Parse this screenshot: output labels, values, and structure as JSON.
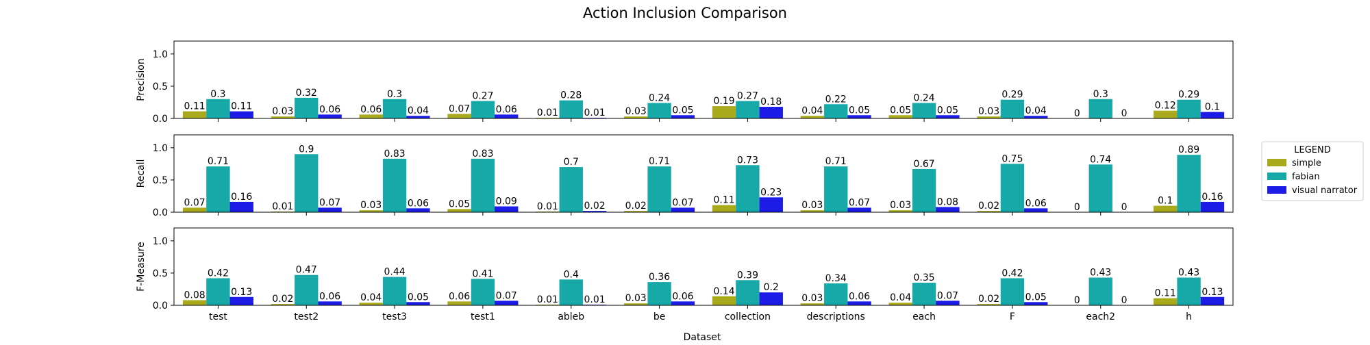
{
  "chart_data": {
    "type": "bar",
    "title": "Action Inclusion Comparison",
    "xlabel": "Dataset",
    "categories": [
      "test",
      "test2",
      "test3",
      "test1",
      "ableb",
      "be",
      "collection",
      "descriptions",
      "each",
      "F",
      "each2",
      "h"
    ],
    "ylim": [
      0,
      1.2
    ],
    "yticks": [
      0.0,
      0.5,
      1.0
    ],
    "grid": false,
    "legend": {
      "title": "LEGEND",
      "placement": "right",
      "entries": [
        "simple",
        "fabian",
        "visual narrator"
      ]
    },
    "series_colors": {
      "simple": "#a9a91c",
      "fabian": "#17a8a8",
      "visual narrator": "#1c1ce6"
    },
    "panels": [
      {
        "ylabel": "Precision",
        "series": [
          {
            "name": "simple",
            "values": [
              0.11,
              0.03,
              0.06,
              0.07,
              0.01,
              0.03,
              0.19,
              0.04,
              0.05,
              0.03,
              0,
              0.12
            ]
          },
          {
            "name": "fabian",
            "values": [
              0.3,
              0.32,
              0.3,
              0.27,
              0.28,
              0.24,
              0.27,
              0.22,
              0.24,
              0.29,
              0.3,
              0.29
            ]
          },
          {
            "name": "visual narrator",
            "values": [
              0.11,
              0.06,
              0.04,
              0.06,
              0.01,
              0.05,
              0.18,
              0.05,
              0.05,
              0.04,
              0,
              0.1
            ]
          }
        ]
      },
      {
        "ylabel": "Recall",
        "series": [
          {
            "name": "simple",
            "values": [
              0.07,
              0.01,
              0.03,
              0.05,
              0.01,
              0.02,
              0.11,
              0.03,
              0.03,
              0.02,
              0,
              0.1
            ]
          },
          {
            "name": "fabian",
            "values": [
              0.71,
              0.9,
              0.83,
              0.83,
              0.7,
              0.71,
              0.73,
              0.71,
              0.67,
              0.75,
              0.74,
              0.89
            ]
          },
          {
            "name": "visual narrator",
            "values": [
              0.16,
              0.07,
              0.06,
              0.09,
              0.02,
              0.07,
              0.23,
              0.07,
              0.08,
              0.06,
              0,
              0.16
            ]
          }
        ]
      },
      {
        "ylabel": "F-Measure",
        "series": [
          {
            "name": "simple",
            "values": [
              0.08,
              0.02,
              0.04,
              0.06,
              0.01,
              0.03,
              0.14,
              0.03,
              0.04,
              0.02,
              0,
              0.11
            ]
          },
          {
            "name": "fabian",
            "values": [
              0.42,
              0.47,
              0.44,
              0.41,
              0.4,
              0.36,
              0.39,
              0.34,
              0.35,
              0.42,
              0.43,
              0.43
            ]
          },
          {
            "name": "visual narrator",
            "values": [
              0.13,
              0.06,
              0.05,
              0.07,
              0.01,
              0.06,
              0.2,
              0.06,
              0.07,
              0.05,
              0,
              0.13
            ]
          }
        ]
      }
    ]
  }
}
